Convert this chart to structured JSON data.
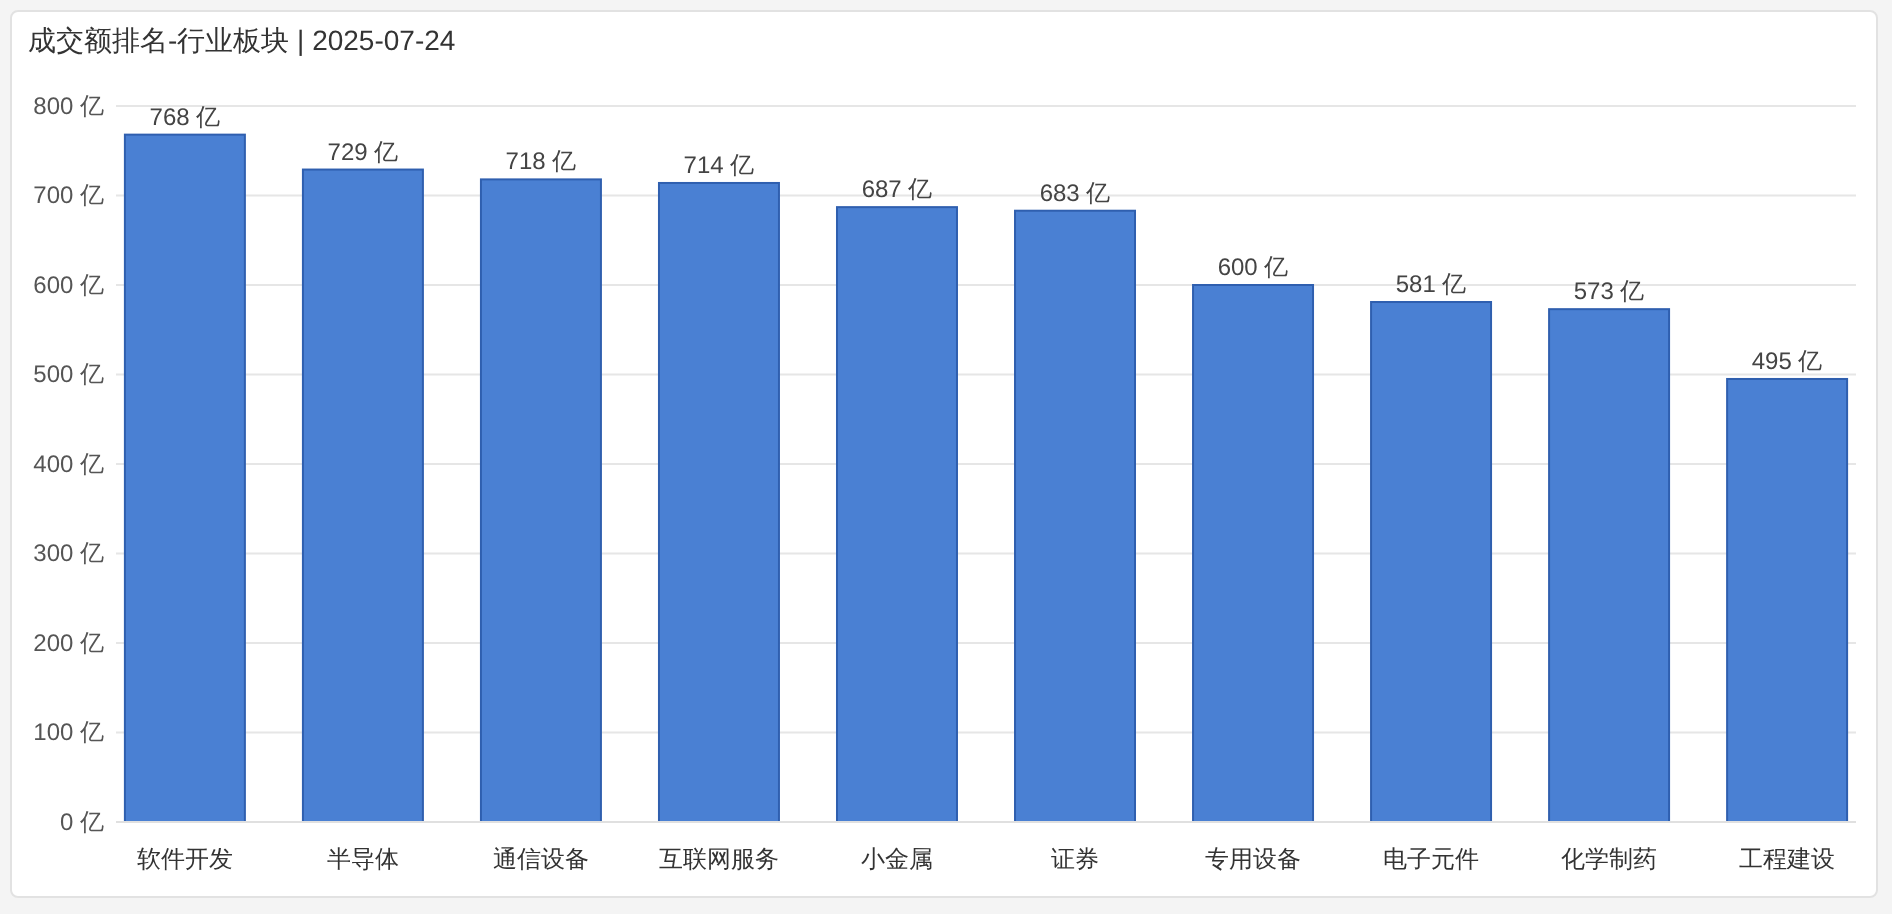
{
  "chart_data": {
    "type": "bar",
    "title": "成交额排名-行业板块 | 2025-07-24",
    "categories": [
      "软件开发",
      "半导体",
      "通信设备",
      "互联网服务",
      "小金属",
      "证券",
      "专用设备",
      "电子元件",
      "化学制药",
      "工程建设"
    ],
    "values": [
      768,
      729,
      718,
      714,
      687,
      683,
      600,
      581,
      573,
      495
    ],
    "value_labels": [
      "768 亿",
      "729 亿",
      "718 亿",
      "714 亿",
      "687 亿",
      "683 亿",
      "600 亿",
      "581 亿",
      "573 亿",
      "495 亿"
    ],
    "color": "#4a80d3",
    "ylim": [
      0,
      800
    ],
    "yticks": [
      {
        "value": 0,
        "label": "0 亿"
      },
      {
        "value": 100,
        "label": "100 亿"
      },
      {
        "value": 200,
        "label": "200 亿"
      },
      {
        "value": 300,
        "label": "300 亿"
      },
      {
        "value": 400,
        "label": "400 亿"
      },
      {
        "value": 500,
        "label": "500 亿"
      },
      {
        "value": 600,
        "label": "600 亿"
      },
      {
        "value": 700,
        "label": "700 亿"
      },
      {
        "value": 800,
        "label": "800 亿"
      }
    ],
    "grid": "y"
  }
}
